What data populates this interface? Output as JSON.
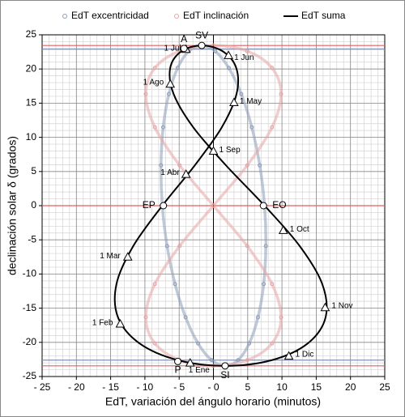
{
  "chart_data": {
    "type": "scatter",
    "xlabel": "EdT, variación del ángulo horario (minutos)",
    "ylabel": "declinación solar δ (grados)",
    "xlim": [
      -25,
      25
    ],
    "ylim": [
      -25,
      25
    ],
    "xticks": [
      {
        "value": -25,
        "label": "- 25"
      },
      {
        "value": -20,
        "label": "- 20"
      },
      {
        "value": -15,
        "label": "- 15"
      },
      {
        "value": -10,
        "label": "- 10"
      },
      {
        "value": -5,
        "label": "- 5"
      },
      {
        "value": 0,
        "label": "- 0"
      },
      {
        "value": 5,
        "label": "5"
      },
      {
        "value": 10,
        "label": "10"
      },
      {
        "value": 15,
        "label": "15"
      },
      {
        "value": 20,
        "label": "20"
      },
      {
        "value": 25,
        "label": "25"
      }
    ],
    "yticks": [
      -25,
      -20,
      -15,
      -10,
      -5,
      0,
      5,
      10,
      15,
      20,
      25
    ],
    "grid": true,
    "minor_grid_step": 1,
    "legend": "top",
    "series": [
      {
        "name": "EdT excentricidad",
        "color": "#8c9cb8",
        "style": "markers",
        "x": [
          -7.46,
          -7.65,
          -7.33,
          -6.5,
          -5.22,
          -3.6,
          -1.72,
          0.27,
          2.24,
          4.06,
          5.6,
          6.76,
          7.46,
          7.65,
          7.33,
          6.5,
          5.22,
          3.6,
          1.72,
          -0.27,
          -2.24,
          -4.06,
          -5.6,
          -6.76
        ],
        "values": [
          0,
          5.91,
          11.47,
          16.34,
          20.15,
          22.6,
          23.44,
          22.6,
          20.15,
          16.34,
          11.47,
          5.91,
          0,
          -5.91,
          -11.47,
          -16.34,
          -20.15,
          -22.6,
          -23.44,
          -22.6,
          -20.15,
          -16.34,
          -11.47,
          -5.91
        ]
      },
      {
        "name": "EdT inclinación",
        "color": "#e8a4a4",
        "style": "markers",
        "x": [
          0,
          4.94,
          8.55,
          9.87,
          8.55,
          4.94,
          0,
          -4.94,
          -8.55,
          -9.87,
          -8.55,
          -4.94,
          0,
          4.94,
          8.55,
          9.87,
          8.55,
          4.94,
          0,
          -4.94,
          -8.55,
          -9.87,
          -8.55,
          -4.94
        ],
        "values": [
          0,
          5.91,
          11.47,
          16.34,
          20.15,
          22.6,
          23.44,
          22.6,
          20.15,
          16.34,
          11.47,
          5.91,
          0,
          -5.91,
          -11.47,
          -16.34,
          -20.15,
          -22.6,
          -23.44,
          -22.6,
          -20.15,
          -16.34,
          -11.47,
          -5.91
        ]
      },
      {
        "name": "EdT suma",
        "color": "#000000",
        "style": "line",
        "x": [
          -7.46,
          -2.71,
          1.22,
          3.37,
          3.33,
          1.34,
          -1.72,
          -4.67,
          -6.31,
          -5.81,
          -2.95,
          1.82,
          7.46,
          12.59,
          15.88,
          16.37,
          13.77,
          8.54,
          1.72,
          -5.21,
          -10.79,
          -13.93,
          -14.15,
          -11.7
        ],
        "values": [
          0,
          5.91,
          11.47,
          16.34,
          20.15,
          22.6,
          23.44,
          22.6,
          20.15,
          16.34,
          11.47,
          5.91,
          0,
          -5.91,
          -11.47,
          -16.34,
          -20.15,
          -22.6,
          -23.44,
          -22.6,
          -20.15,
          -16.34,
          -11.47,
          -5.91
        ]
      }
    ],
    "reference_lines": [
      {
        "y": 23.44,
        "color": "#e06060"
      },
      {
        "y": 22.9,
        "color": "#8090b0"
      },
      {
        "y": 0,
        "color": "#e06060"
      },
      {
        "y": -22.6,
        "color": "#8090b0"
      },
      {
        "y": -23.44,
        "color": "#e06060"
      },
      {
        "x": 0,
        "color": "#000000"
      }
    ],
    "annotations": [
      {
        "text": "1 Jul",
        "x": -4.0,
        "y": 22.9,
        "marker": "triangle"
      },
      {
        "text": "1 Jun",
        "x": 2.2,
        "y": 22.0,
        "marker": "triangle"
      },
      {
        "text": "1 Ago",
        "x": -6.3,
        "y": 17.8,
        "marker": "triangle"
      },
      {
        "text": "1 May",
        "x": 3.0,
        "y": 15.1,
        "marker": "triangle"
      },
      {
        "text": "1 Sep",
        "x": 0.0,
        "y": 8.0,
        "marker": "triangle"
      },
      {
        "text": "1 Abr",
        "x": -4.0,
        "y": 4.6,
        "marker": "triangle"
      },
      {
        "text": "1 Oct",
        "x": 10.2,
        "y": -3.6,
        "marker": "triangle"
      },
      {
        "text": "1 Mar",
        "x": -12.5,
        "y": -7.5,
        "marker": "triangle"
      },
      {
        "text": "1 Nov",
        "x": 16.3,
        "y": -14.9,
        "marker": "triangle"
      },
      {
        "text": "1 Feb",
        "x": -13.6,
        "y": -17.3,
        "marker": "triangle"
      },
      {
        "text": "1 Dic",
        "x": 11.0,
        "y": -22.0,
        "marker": "triangle"
      },
      {
        "text": "1 Ene",
        "x": -3.4,
        "y": -23.0,
        "marker": "triangle"
      },
      {
        "text": "A",
        "x": -4.3,
        "y": 23.0,
        "marker": "circle"
      },
      {
        "text": "SV",
        "x": -1.7,
        "y": 23.44,
        "marker": "circle"
      },
      {
        "text": "EP",
        "x": -7.3,
        "y": 0,
        "marker": "circle"
      },
      {
        "text": "EO",
        "x": 7.3,
        "y": 0,
        "marker": "circle"
      },
      {
        "text": "P",
        "x": -5.2,
        "y": -22.8,
        "marker": "circle"
      },
      {
        "text": "SI",
        "x": 1.7,
        "y": -23.44,
        "marker": "circle"
      }
    ]
  }
}
